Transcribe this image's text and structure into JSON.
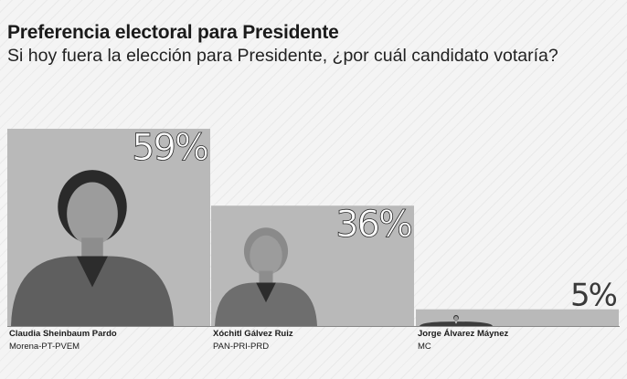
{
  "title": "Preferencia electoral para Presidente",
  "subtitle": "Si hoy fuera la elección para Presidente, ¿por cuál candidato votaría?",
  "colors": {
    "bar": "#b9b9b9",
    "bar_photo": "#a9a9a9",
    "value_label": "#ffffff",
    "value_label_outline": "#2b2b2b",
    "shadow": "#3a3a3a"
  },
  "chart_data": {
    "type": "bar",
    "categories": [
      "Claudia Sheinbaum Pardo",
      "Xóchitl Gálvez Ruiz",
      "Jorge Álvarez Máynez"
    ],
    "parties": [
      "Morena-PT-PVEM",
      "PAN-PRI-PRD",
      "MC"
    ],
    "values": [
      59,
      36,
      5
    ],
    "value_labels": [
      "59%",
      "36%",
      "5%"
    ],
    "photos": [
      "woman-dark-hair-portrait",
      "woman-light-hair-portrait",
      "man-short-hair-portrait"
    ],
    "ylim": [
      0,
      59
    ],
    "grid": false,
    "legend": "none"
  }
}
